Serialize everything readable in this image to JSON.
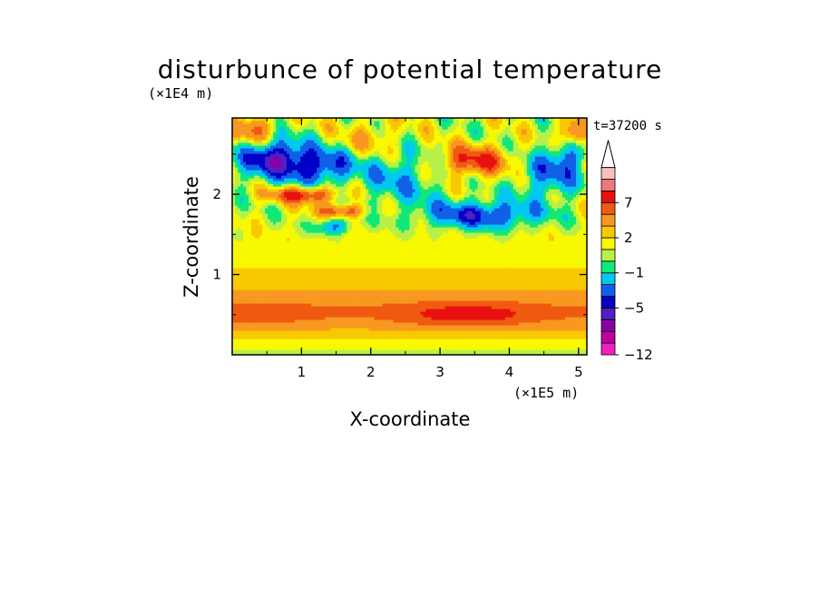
{
  "chart_data": {
    "type": "heatmap",
    "title": "disturbunce of potential temperature",
    "xlabel": "X-coordinate",
    "ylabel": "Z-coordinate",
    "x_scale_label": "(×1E5 m)",
    "y_scale_label": "(×1E4 m)",
    "time_label": "t=37200 s",
    "xlim": [
      0,
      5.12
    ],
    "ylim": [
      0,
      2.95
    ],
    "x_ticks": [
      "1",
      "2",
      "3",
      "4",
      "5"
    ],
    "x_tick_values": [
      1,
      2,
      3,
      4,
      5
    ],
    "y_ticks": [
      "1",
      "2"
    ],
    "y_tick_values": [
      1,
      2
    ],
    "colorbar": {
      "levels": [
        -12,
        -10,
        -8,
        -6.5,
        -5,
        -3.5,
        -2,
        -1,
        0,
        1,
        2,
        3.5,
        5,
        7,
        9
      ],
      "colors": [
        "#f020c0",
        "#c000a0",
        "#8800a8",
        "#5020c0",
        "#0000c8",
        "#1060e8",
        "#00c8f0",
        "#10e878",
        "#b8f048",
        "#f8f800",
        "#f8c800",
        "#f89820",
        "#f05a10",
        "#e81010",
        "#f07878",
        "#f8c0c0"
      ],
      "labels": [
        "-12",
        "-5",
        "-1",
        "2",
        "7"
      ],
      "label_values": [
        -12,
        -5,
        -1,
        2,
        7
      ],
      "extend": "max"
    },
    "field_description": "warm band near 0.5E4 m; cold anomalies between 1.5E4 and 2.8E4 m; warm anomaly near x=3.5E5 m, z=2.4E4 m"
  }
}
